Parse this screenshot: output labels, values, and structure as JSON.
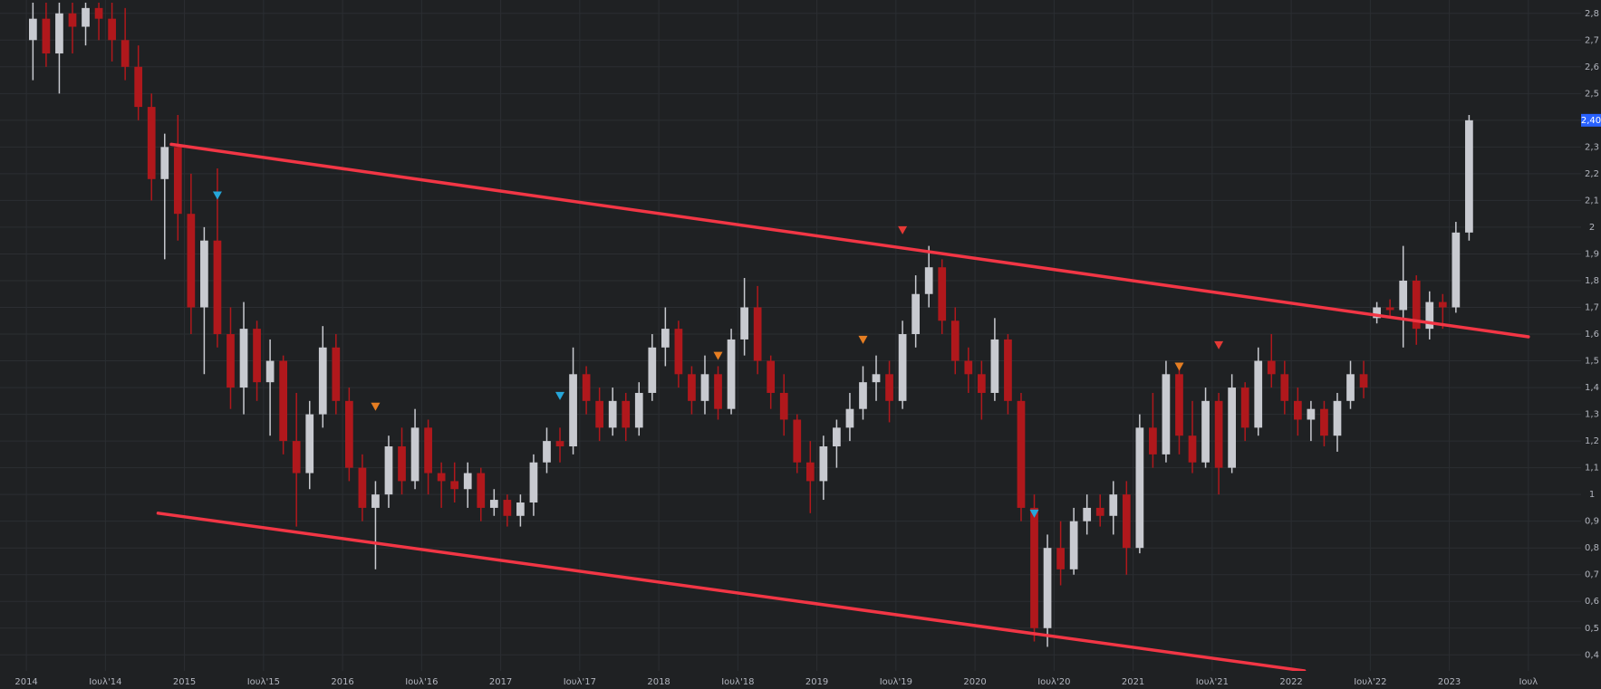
{
  "chart_data": {
    "type": "candlestick",
    "up_color": "#c8cad0",
    "down_color": "#b0181c",
    "x": [
      "2014-01",
      "2014-02",
      "2014-03",
      "2014-04",
      "2014-05",
      "2014-06",
      "2014-07",
      "2014-08",
      "2014-09",
      "2014-10",
      "2014-11",
      "2014-12",
      "2015-01",
      "2015-02",
      "2015-03",
      "2015-04",
      "2015-05",
      "2015-06",
      "2015-07",
      "2015-08",
      "2015-09",
      "2015-10",
      "2015-11",
      "2015-12",
      "2016-01",
      "2016-02",
      "2016-03",
      "2016-04",
      "2016-05",
      "2016-06",
      "2016-07",
      "2016-08",
      "2016-09",
      "2016-10",
      "2016-11",
      "2016-12",
      "2017-01",
      "2017-02",
      "2017-03",
      "2017-04",
      "2017-05",
      "2017-06",
      "2017-07",
      "2017-08",
      "2017-09",
      "2017-10",
      "2017-11",
      "2017-12",
      "2018-01",
      "2018-02",
      "2018-03",
      "2018-04",
      "2018-05",
      "2018-06",
      "2018-07",
      "2018-08",
      "2018-09",
      "2018-10",
      "2018-11",
      "2018-12",
      "2019-01",
      "2019-02",
      "2019-03",
      "2019-04",
      "2019-05",
      "2019-06",
      "2019-07",
      "2019-08",
      "2019-09",
      "2019-10",
      "2019-11",
      "2019-12",
      "2020-01",
      "2020-02",
      "2020-03",
      "2020-04",
      "2020-05",
      "2020-06",
      "2020-07",
      "2020-08",
      "2020-09",
      "2020-10",
      "2020-11",
      "2020-12",
      "2021-01",
      "2021-02",
      "2021-03",
      "2021-04",
      "2021-05",
      "2021-06",
      "2021-07",
      "2021-08",
      "2021-09",
      "2021-10",
      "2021-11",
      "2021-12",
      "2022-01",
      "2022-02",
      "2022-03",
      "2022-04",
      "2022-05",
      "2022-06",
      "2022-07",
      "2022-08",
      "2022-09",
      "2022-10",
      "2022-11",
      "2022-12",
      "2023-01",
      "2023-02"
    ],
    "open": [
      2.7,
      2.78,
      2.65,
      2.8,
      2.75,
      2.82,
      2.78,
      2.7,
      2.6,
      2.45,
      2.18,
      2.3,
      2.05,
      1.7,
      1.95,
      1.6,
      1.4,
      1.62,
      1.42,
      1.5,
      1.2,
      1.08,
      1.3,
      1.55,
      1.35,
      1.1,
      0.95,
      1.0,
      1.18,
      1.05,
      1.25,
      1.08,
      1.05,
      1.02,
      1.08,
      0.95,
      0.98,
      0.92,
      0.97,
      1.12,
      1.2,
      1.18,
      1.45,
      1.35,
      1.25,
      1.35,
      1.25,
      1.38,
      1.55,
      1.62,
      1.45,
      1.35,
      1.45,
      1.32,
      1.58,
      1.7,
      1.5,
      1.38,
      1.28,
      1.12,
      1.05,
      1.18,
      1.25,
      1.32,
      1.42,
      1.45,
      1.35,
      1.6,
      1.75,
      1.85,
      1.65,
      1.5,
      1.45,
      1.38,
      1.58,
      1.35,
      0.95,
      0.5,
      0.8,
      0.72,
      0.9,
      0.95,
      0.92,
      1.0,
      0.8,
      1.25,
      1.15,
      1.45,
      1.22,
      1.12,
      1.35,
      1.1,
      1.4,
      1.25,
      1.5,
      1.45,
      1.35,
      1.28,
      1.32,
      1.22,
      1.35,
      1.45,
      1.66,
      1.7,
      1.69,
      1.8,
      1.62,
      1.72,
      1.7,
      1.98
    ],
    "high": [
      2.84,
      2.84,
      2.84,
      2.84,
      2.84,
      2.84,
      2.84,
      2.82,
      2.68,
      2.5,
      2.35,
      2.42,
      2.2,
      2.0,
      2.22,
      1.7,
      1.72,
      1.65,
      1.58,
      1.52,
      1.38,
      1.35,
      1.63,
      1.6,
      1.4,
      1.15,
      1.05,
      1.22,
      1.25,
      1.32,
      1.28,
      1.12,
      1.12,
      1.12,
      1.1,
      1.02,
      1.0,
      1.0,
      1.15,
      1.25,
      1.25,
      1.55,
      1.48,
      1.4,
      1.4,
      1.38,
      1.42,
      1.6,
      1.7,
      1.65,
      1.48,
      1.52,
      1.48,
      1.62,
      1.81,
      1.78,
      1.52,
      1.45,
      1.3,
      1.2,
      1.22,
      1.28,
      1.38,
      1.48,
      1.52,
      1.5,
      1.65,
      1.82,
      1.93,
      1.88,
      1.7,
      1.55,
      1.5,
      1.66,
      1.6,
      1.38,
      1.0,
      0.85,
      0.9,
      0.95,
      1.0,
      1.0,
      1.05,
      1.05,
      1.3,
      1.38,
      1.5,
      1.48,
      1.35,
      1.4,
      1.38,
      1.45,
      1.42,
      1.55,
      1.6,
      1.5,
      1.4,
      1.35,
      1.35,
      1.38,
      1.5,
      1.5,
      1.72,
      1.73,
      1.93,
      1.82,
      1.76,
      1.75,
      2.02,
      2.42
    ],
    "low": [
      2.55,
      2.6,
      2.5,
      2.65,
      2.68,
      2.7,
      2.62,
      2.55,
      2.4,
      2.1,
      1.88,
      1.95,
      1.6,
      1.45,
      1.55,
      1.32,
      1.3,
      1.35,
      1.22,
      1.15,
      0.88,
      1.02,
      1.25,
      1.3,
      1.05,
      0.9,
      0.72,
      0.95,
      1.0,
      1.02,
      1.0,
      0.95,
      0.97,
      0.95,
      0.9,
      0.92,
      0.88,
      0.88,
      0.92,
      1.08,
      1.12,
      1.15,
      1.3,
      1.2,
      1.22,
      1.2,
      1.22,
      1.35,
      1.48,
      1.4,
      1.3,
      1.3,
      1.28,
      1.3,
      1.52,
      1.45,
      1.32,
      1.22,
      1.08,
      0.93,
      0.98,
      1.1,
      1.2,
      1.28,
      1.35,
      1.27,
      1.32,
      1.55,
      1.7,
      1.6,
      1.45,
      1.38,
      1.28,
      1.35,
      1.3,
      0.9,
      0.45,
      0.43,
      0.66,
      0.7,
      0.85,
      0.88,
      0.85,
      0.7,
      0.78,
      1.1,
      1.12,
      1.15,
      1.08,
      1.1,
      1.0,
      1.08,
      1.2,
      1.22,
      1.4,
      1.3,
      1.22,
      1.2,
      1.18,
      1.16,
      1.32,
      1.36,
      1.64,
      1.66,
      1.55,
      1.56,
      1.58,
      1.62,
      1.68,
      1.95
    ],
    "close": [
      2.78,
      2.65,
      2.8,
      2.75,
      2.82,
      2.78,
      2.7,
      2.6,
      2.45,
      2.18,
      2.3,
      2.05,
      1.7,
      1.95,
      1.6,
      1.4,
      1.62,
      1.42,
      1.5,
      1.2,
      1.08,
      1.3,
      1.55,
      1.35,
      1.1,
      0.95,
      1.0,
      1.18,
      1.05,
      1.25,
      1.08,
      1.05,
      1.02,
      1.08,
      0.95,
      0.98,
      0.92,
      0.97,
      1.12,
      1.2,
      1.18,
      1.45,
      1.35,
      1.25,
      1.35,
      1.25,
      1.38,
      1.55,
      1.62,
      1.45,
      1.35,
      1.45,
      1.32,
      1.58,
      1.7,
      1.5,
      1.38,
      1.28,
      1.12,
      1.05,
      1.18,
      1.25,
      1.32,
      1.42,
      1.45,
      1.35,
      1.6,
      1.75,
      1.85,
      1.65,
      1.5,
      1.45,
      1.38,
      1.58,
      1.35,
      0.95,
      0.5,
      0.8,
      0.72,
      0.9,
      0.95,
      0.92,
      1.0,
      0.8,
      1.25,
      1.15,
      1.45,
      1.22,
      1.12,
      1.35,
      1.1,
      1.4,
      1.25,
      1.5,
      1.45,
      1.35,
      1.28,
      1.32,
      1.22,
      1.35,
      1.45,
      1.4,
      1.7,
      1.69,
      1.8,
      1.62,
      1.72,
      1.7,
      1.98,
      2.4
    ],
    "xlim": [
      "2013-11",
      "2023-11"
    ],
    "xticks": [
      {
        "value": "2014-01",
        "label": "2014"
      },
      {
        "value": "2014-07",
        "label": "Ιουλ'14"
      },
      {
        "value": "2015-01",
        "label": "2015"
      },
      {
        "value": "2015-07",
        "label": "Ιουλ'15"
      },
      {
        "value": "2016-01",
        "label": "2016"
      },
      {
        "value": "2016-07",
        "label": "Ιουλ'16"
      },
      {
        "value": "2017-01",
        "label": "2017"
      },
      {
        "value": "2017-07",
        "label": "Ιουλ'17"
      },
      {
        "value": "2018-01",
        "label": "2018"
      },
      {
        "value": "2018-07",
        "label": "Ιουλ'18"
      },
      {
        "value": "2019-01",
        "label": "2019"
      },
      {
        "value": "2019-07",
        "label": "Ιουλ'19"
      },
      {
        "value": "2020-01",
        "label": "2020"
      },
      {
        "value": "2020-07",
        "label": "Ιουλ'20"
      },
      {
        "value": "2021-01",
        "label": "2021"
      },
      {
        "value": "2021-07",
        "label": "Ιουλ'21"
      },
      {
        "value": "2022-01",
        "label": "2022"
      },
      {
        "value": "2022-07",
        "label": "Ιουλ'22"
      },
      {
        "value": "2023-01",
        "label": "2023"
      },
      {
        "value": "2023-07",
        "label": "Ιουλ"
      }
    ],
    "ylim": [
      0.34,
      2.85
    ],
    "yticks": [
      {
        "value": 0.4,
        "label": "0,4"
      },
      {
        "value": 0.5,
        "label": "0,5"
      },
      {
        "value": 0.6,
        "label": "0,6"
      },
      {
        "value": 0.7,
        "label": "0,7"
      },
      {
        "value": 0.8,
        "label": "0,8"
      },
      {
        "value": 0.9,
        "label": "0,9"
      },
      1,
      {
        "value": 1.1,
        "label": "1,1"
      },
      {
        "value": 1.2,
        "label": "1,2"
      },
      {
        "value": 1.3,
        "label": "1,3"
      },
      {
        "value": 1.4,
        "label": "1,4"
      },
      {
        "value": 1.5,
        "label": "1,5"
      },
      {
        "value": 1.6,
        "label": "1,6"
      },
      {
        "value": 1.7,
        "label": "1,7"
      },
      {
        "value": 1.8,
        "label": "1,8"
      },
      {
        "value": 1.9,
        "label": "1,9"
      },
      2,
      {
        "value": 2.1,
        "label": "2,1"
      },
      {
        "value": 2.2,
        "label": "2,2"
      },
      {
        "value": 2.3,
        "label": "2,3"
      },
      {
        "value": 2.4,
        "label": "2,4"
      },
      {
        "value": 2.5,
        "label": "2,5"
      },
      {
        "value": 2.6,
        "label": "2,6"
      },
      {
        "value": 2.7,
        "label": "2,7"
      },
      {
        "value": 2.8,
        "label": "2,8"
      }
    ],
    "grid": true,
    "last_price": {
      "value": 2.4,
      "label": "2,40",
      "color": "#2962ff"
    },
    "trendlines": [
      {
        "x": [
          "2014-12",
          "2023-07"
        ],
        "y": [
          2.31,
          1.59
        ],
        "color": "#f23645"
      },
      {
        "x": [
          "2014-11",
          "2022-02"
        ],
        "y": [
          0.93,
          0.34
        ],
        "color": "#f23645"
      }
    ],
    "events": [
      {
        "x": "2015-03",
        "y": 2.12,
        "color": "#26a6d9"
      },
      {
        "x": "2016-03",
        "y": 1.33,
        "color": "#e67e22"
      },
      {
        "x": "2017-05",
        "y": 1.37,
        "color": "#26a6d9"
      },
      {
        "x": "2018-05",
        "y": 1.52,
        "color": "#e67e22"
      },
      {
        "x": "2019-04",
        "y": 1.58,
        "color": "#e67e22"
      },
      {
        "x": "2019-07",
        "y": 1.99,
        "color": "#e53935"
      },
      {
        "x": "2020-05",
        "y": 0.93,
        "color": "#26a6d9"
      },
      {
        "x": "2021-04",
        "y": 1.48,
        "color": "#e67e22"
      },
      {
        "x": "2021-07",
        "y": 1.56,
        "color": "#e53935"
      }
    ]
  }
}
